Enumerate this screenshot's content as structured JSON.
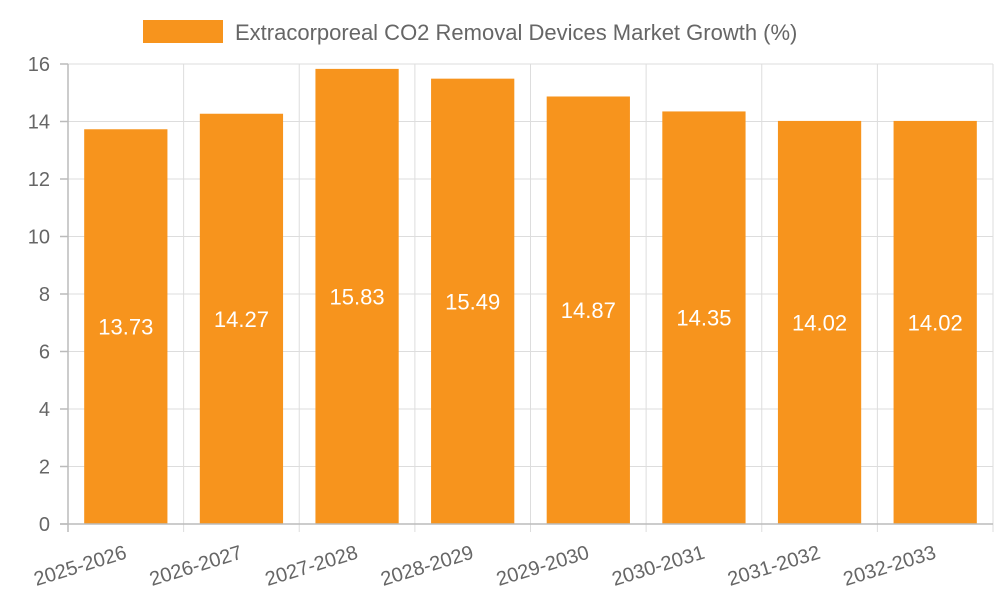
{
  "chart_data": {
    "type": "bar",
    "title": "",
    "xlabel": "",
    "ylabel": "",
    "categories": [
      "2025-2026",
      "2026-2027",
      "2027-2028",
      "2028-2029",
      "2029-2030",
      "2030-2031",
      "2031-2032",
      "2032-2033"
    ],
    "series": [
      {
        "name": "Extracorporeal CO2 Removal Devices Market Growth (%)",
        "values": [
          13.73,
          14.27,
          15.83,
          15.49,
          14.87,
          14.35,
          14.02,
          14.02
        ],
        "color": "#f7941d"
      }
    ],
    "data_labels": [
      "13.73",
      "14.27",
      "15.83",
      "15.49",
      "14.87",
      "14.35",
      "14.02",
      "14.02"
    ],
    "ylim": [
      0,
      16
    ],
    "yticks": [
      "0",
      "2",
      "4",
      "6",
      "8",
      "10",
      "12",
      "14",
      "16"
    ],
    "grid": true,
    "legend": "top-center"
  }
}
